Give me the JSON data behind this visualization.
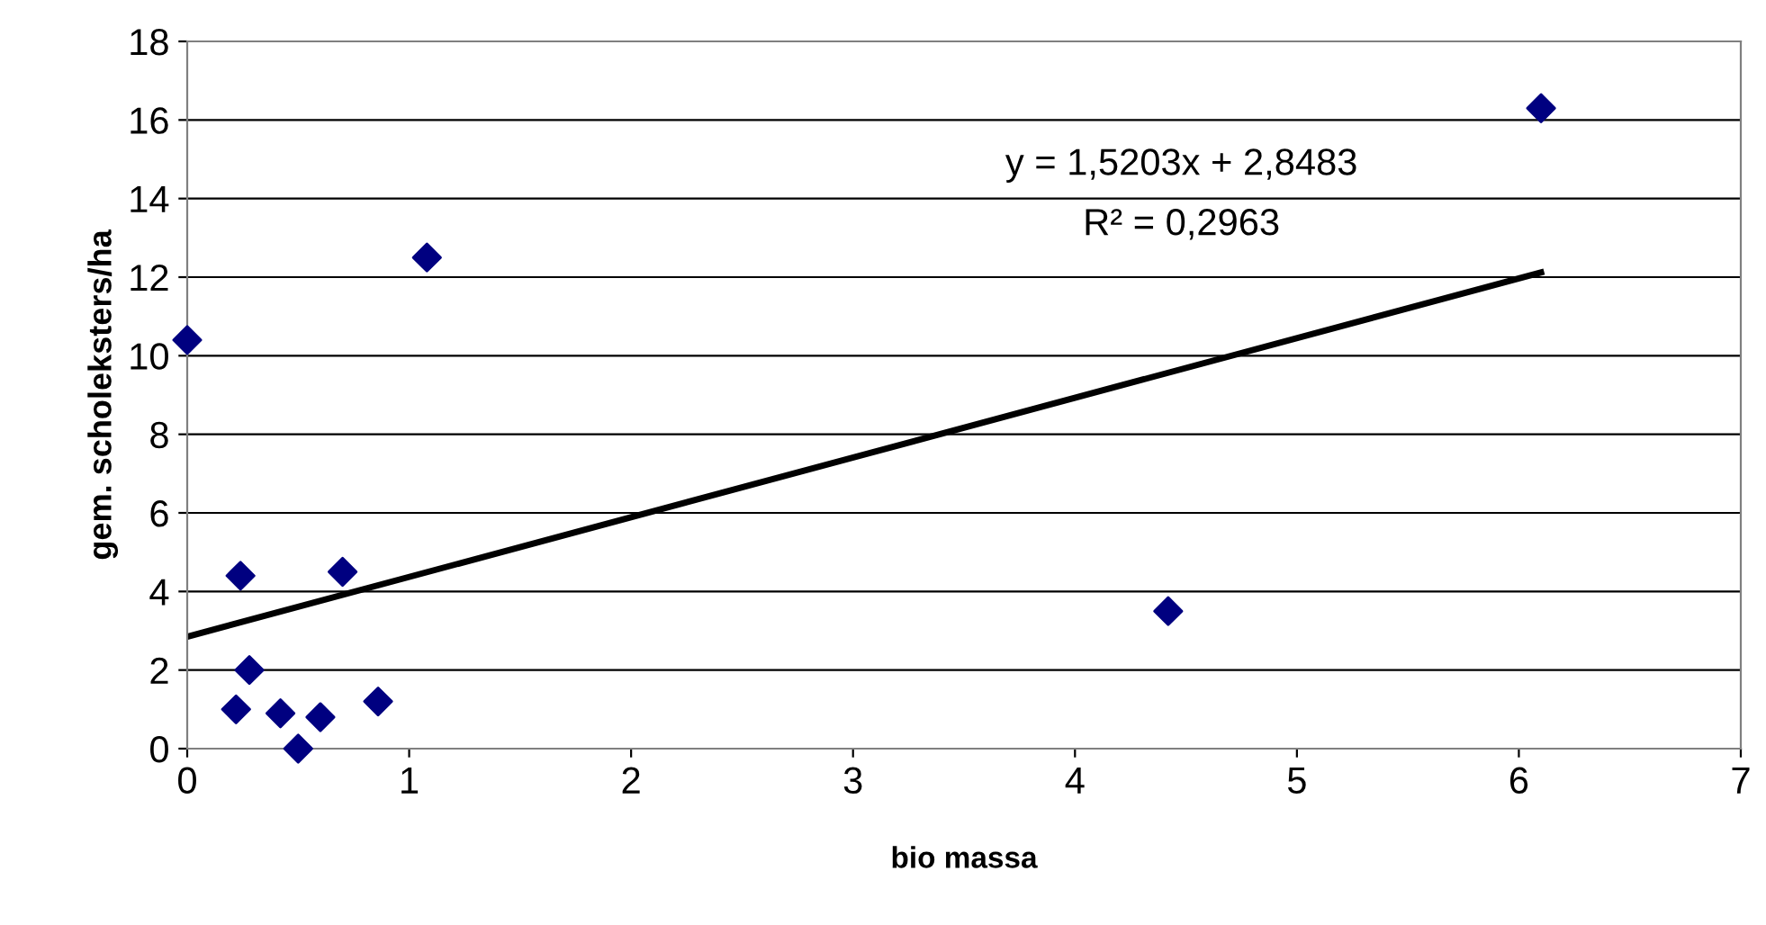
{
  "chart_data": {
    "type": "scatter",
    "xlabel": "bio massa",
    "ylabel": "gem. scholeksters/ha",
    "xlim": [
      0,
      7
    ],
    "ylim": [
      0,
      18
    ],
    "xticks": [
      0,
      1,
      2,
      3,
      4,
      5,
      6,
      7
    ],
    "yticks": [
      0,
      2,
      4,
      6,
      8,
      10,
      12,
      14,
      16,
      18
    ],
    "grid": "y",
    "legend": false,
    "series": [
      {
        "color": "#000080",
        "marker": "diamond",
        "x": [
          0,
          1.08,
          6.1,
          4.42,
          0.24,
          0.7,
          0.28,
          0.22,
          0.42,
          0.5,
          0.6,
          0.86
        ],
        "values": [
          10.4,
          12.5,
          16.3,
          3.5,
          4.4,
          4.5,
          2.0,
          1.0,
          0.9,
          0.0,
          0.8,
          1.2
        ]
      },
      {
        "type": "line",
        "color": "#000000",
        "marker": "none",
        "line_style": "solid",
        "x": [
          0,
          6.1
        ],
        "values": [
          2.85,
          12.12
        ]
      }
    ],
    "annotations": [
      "y = 1,5203x + 2,8483",
      "R² = 0,2963"
    ]
  }
}
